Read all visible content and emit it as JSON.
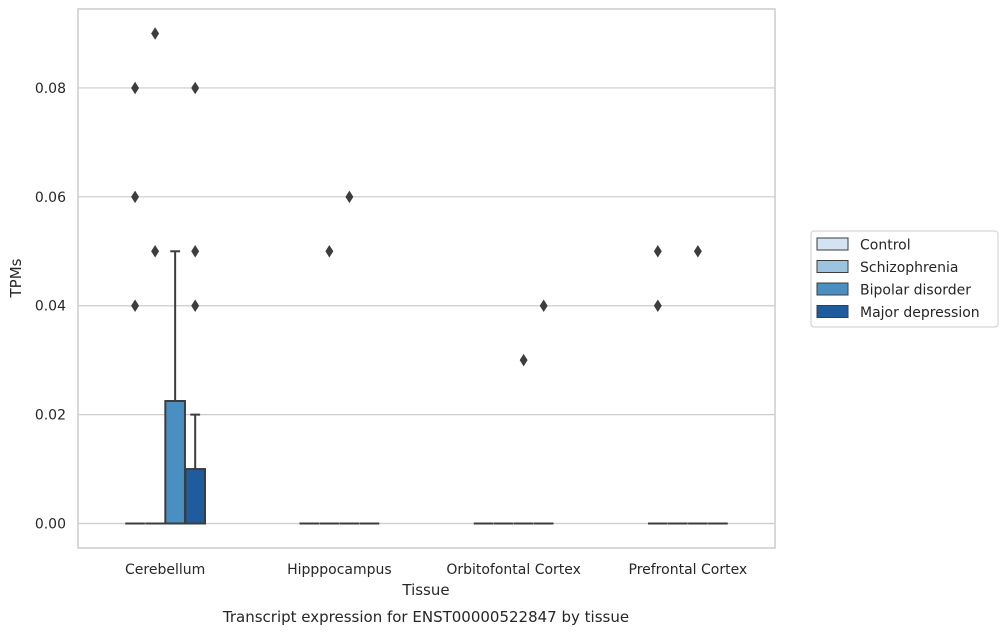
{
  "chart_data": {
    "type": "box",
    "caption": "Transcript expression for ENST00000522847 by tissue",
    "xlabel": "Tissue",
    "ylabel": "TPMs",
    "ylim": [
      -0.0045,
      0.0945
    ],
    "yticks": [
      "0.00",
      "0.02",
      "0.04",
      "0.06",
      "0.08"
    ],
    "grid": "horizontal",
    "legend_position": "right",
    "categories": [
      "Cerebellum",
      "Hipppocampus",
      "Orbitofontal Cortex",
      "Prefrontal Cortex"
    ],
    "series": [
      {
        "name": "Control",
        "color": "#d4e3f1",
        "boxes": [
          {
            "q1": 0,
            "median": 0,
            "q3": 0,
            "whisker_low": 0,
            "whisker_high": 0,
            "outliers": [
              0.04,
              0.06,
              0.08
            ]
          },
          {
            "q1": 0,
            "median": 0,
            "q3": 0,
            "whisker_low": 0,
            "whisker_high": 0,
            "outliers": []
          },
          {
            "q1": 0,
            "median": 0,
            "q3": 0,
            "whisker_low": 0,
            "whisker_high": 0,
            "outliers": []
          },
          {
            "q1": 0,
            "median": 0,
            "q3": 0,
            "whisker_low": 0,
            "whisker_high": 0,
            "outliers": [
              0.04,
              0.05
            ]
          }
        ]
      },
      {
        "name": "Schizophrenia",
        "color": "#9cc3df",
        "boxes": [
          {
            "q1": 0,
            "median": 0,
            "q3": 0,
            "whisker_low": 0,
            "whisker_high": 0,
            "outliers": [
              0.05,
              0.09
            ]
          },
          {
            "q1": 0,
            "median": 0,
            "q3": 0,
            "whisker_low": 0,
            "whisker_high": 0,
            "outliers": [
              0.05
            ]
          },
          {
            "q1": 0,
            "median": 0,
            "q3": 0,
            "whisker_low": 0,
            "whisker_high": 0,
            "outliers": []
          },
          {
            "q1": 0,
            "median": 0,
            "q3": 0,
            "whisker_low": 0,
            "whisker_high": 0,
            "outliers": []
          }
        ]
      },
      {
        "name": "Bipolar disorder",
        "color": "#4a8fc2",
        "boxes": [
          {
            "q1": 0,
            "median": 0,
            "q3": 0.0225,
            "whisker_low": 0,
            "whisker_high": 0.05,
            "outliers": []
          },
          {
            "q1": 0,
            "median": 0,
            "q3": 0,
            "whisker_low": 0,
            "whisker_high": 0,
            "outliers": [
              0.06
            ]
          },
          {
            "q1": 0,
            "median": 0,
            "q3": 0,
            "whisker_low": 0,
            "whisker_high": 0,
            "outliers": [
              0.03
            ]
          },
          {
            "q1": 0,
            "median": 0,
            "q3": 0,
            "whisker_low": 0,
            "whisker_high": 0,
            "outliers": [
              0.05
            ]
          }
        ]
      },
      {
        "name": "Major depression",
        "color": "#1f5c9e",
        "boxes": [
          {
            "q1": 0,
            "median": 0,
            "q3": 0.01,
            "whisker_low": 0,
            "whisker_high": 0.02,
            "outliers": [
              0.04,
              0.05,
              0.08
            ]
          },
          {
            "q1": 0,
            "median": 0,
            "q3": 0,
            "whisker_low": 0,
            "whisker_high": 0,
            "outliers": []
          },
          {
            "q1": 0,
            "median": 0,
            "q3": 0,
            "whisker_low": 0,
            "whisker_high": 0,
            "outliers": [
              0.04
            ]
          },
          {
            "q1": 0,
            "median": 0,
            "q3": 0,
            "whisker_low": 0,
            "whisker_high": 0,
            "outliers": []
          }
        ]
      }
    ]
  },
  "colors": {
    "axes_edge": "#cccccc",
    "grid": "#cccccc",
    "box_edge": "#3d3d3d",
    "text": "#262626"
  }
}
